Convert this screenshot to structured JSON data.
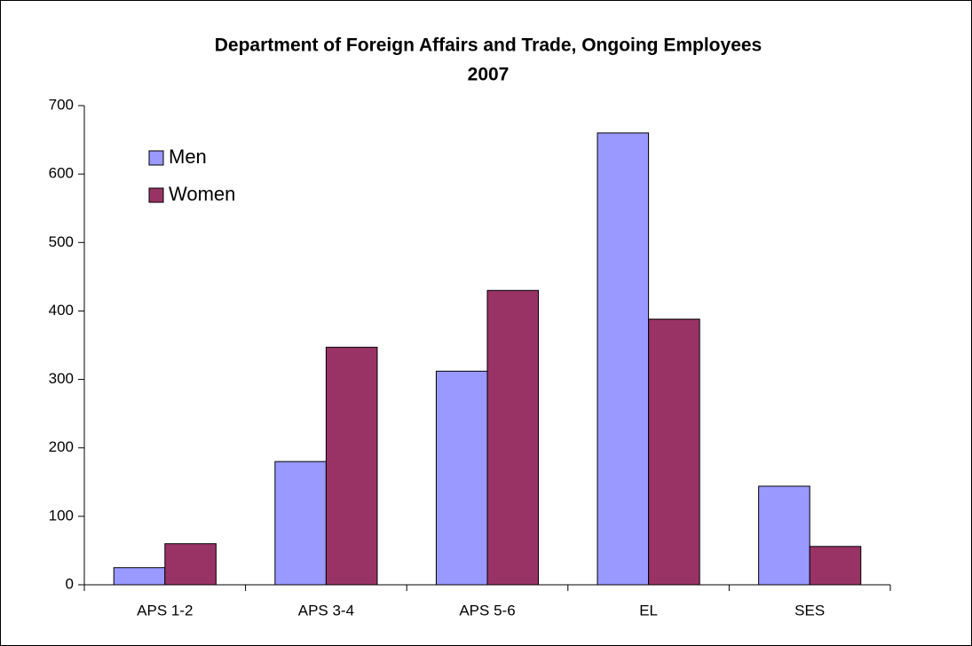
{
  "chart_data": {
    "type": "bar",
    "title": [
      "Department of Foreign Affairs and Trade, Ongoing Employees",
      "2007"
    ],
    "categories": [
      "APS 1-2",
      "APS 3-4",
      "APS 5-6",
      "EL",
      "SES"
    ],
    "series": [
      {
        "name": "Men",
        "color": "#9999ff",
        "values": [
          25,
          180,
          312,
          660,
          144
        ]
      },
      {
        "name": "Women",
        "color": "#993366",
        "values": [
          60,
          347,
          430,
          388,
          56
        ]
      }
    ],
    "ylim": [
      0,
      700
    ],
    "yticks": [
      0,
      100,
      200,
      300,
      400,
      500,
      600,
      700
    ],
    "legend": "upper left"
  }
}
